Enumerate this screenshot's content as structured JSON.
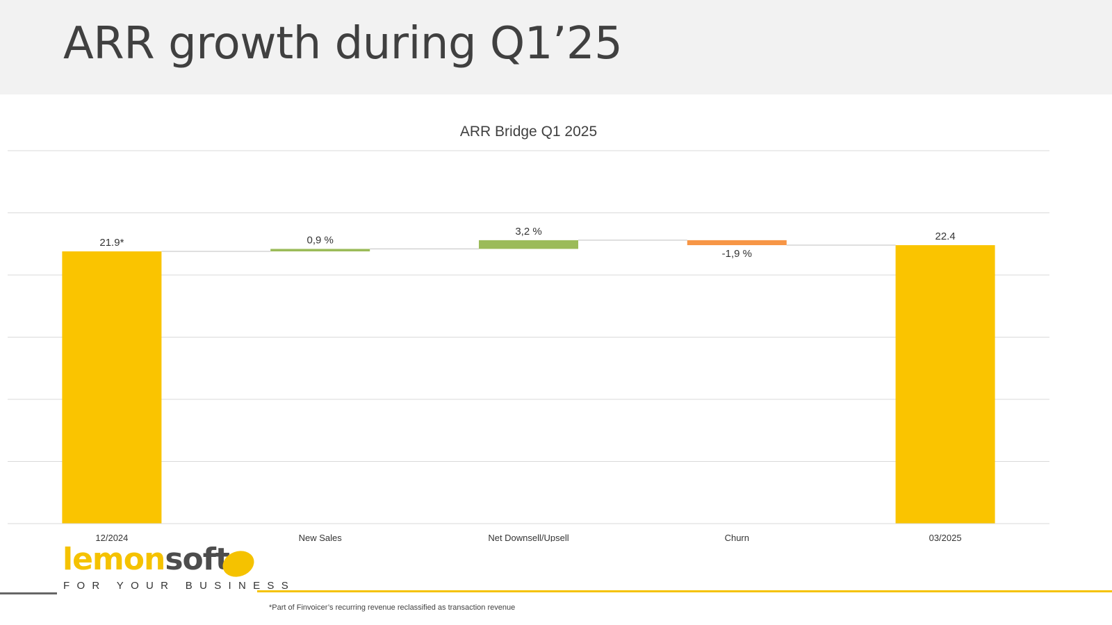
{
  "page": {
    "title": "ARR growth during Q1’25"
  },
  "chart_data": {
    "type": "bar",
    "subtype": "waterfall",
    "title": "ARR Bridge Q1 2025",
    "categories": [
      "12/2024",
      "New Sales",
      "Net Downsell/Upsell",
      "Churn",
      "03/2025"
    ],
    "steps": [
      {
        "category": "12/2024",
        "kind": "total",
        "value": 21.9,
        "label": "21.9*",
        "color": "#fac400"
      },
      {
        "category": "New Sales",
        "kind": "increase",
        "value": 0.2,
        "label": "0,9 %",
        "color": "#9bbb59"
      },
      {
        "category": "Net Downsell/Upsell",
        "kind": "increase",
        "value": 0.7,
        "label": "3,2 %",
        "color": "#9bbb59"
      },
      {
        "category": "Churn",
        "kind": "decrease",
        "value": -0.4,
        "label": "-1,9 %",
        "color": "#f79646"
      },
      {
        "category": "03/2025",
        "kind": "total",
        "value": 22.4,
        "label": "22.4",
        "color": "#fac400"
      }
    ],
    "ylim": [
      0,
      30
    ],
    "gridlines": true,
    "legend": "none",
    "xlabel": "",
    "ylabel": ""
  },
  "logo": {
    "part1": "lemon",
    "part2": "soft",
    "tagline": "FOR YOUR BUSINESS"
  },
  "footnote": "*Part of Finvoicer’s recurring revenue reclassified as transaction revenue"
}
